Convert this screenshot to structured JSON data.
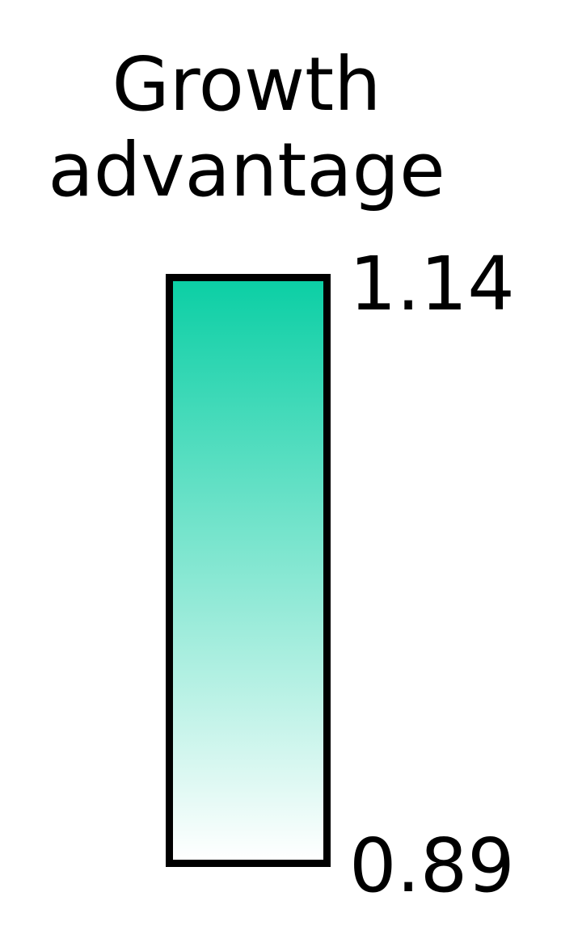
{
  "chart_data": {
    "type": "colorbar",
    "title": [
      "Growth",
      "advantage"
    ],
    "min_value": 0.89,
    "max_value": 1.14,
    "min_label": "0.89",
    "max_label": "1.14",
    "orientation": "vertical",
    "color_low": "#ffffff",
    "color_high": "#0ccfa5"
  }
}
